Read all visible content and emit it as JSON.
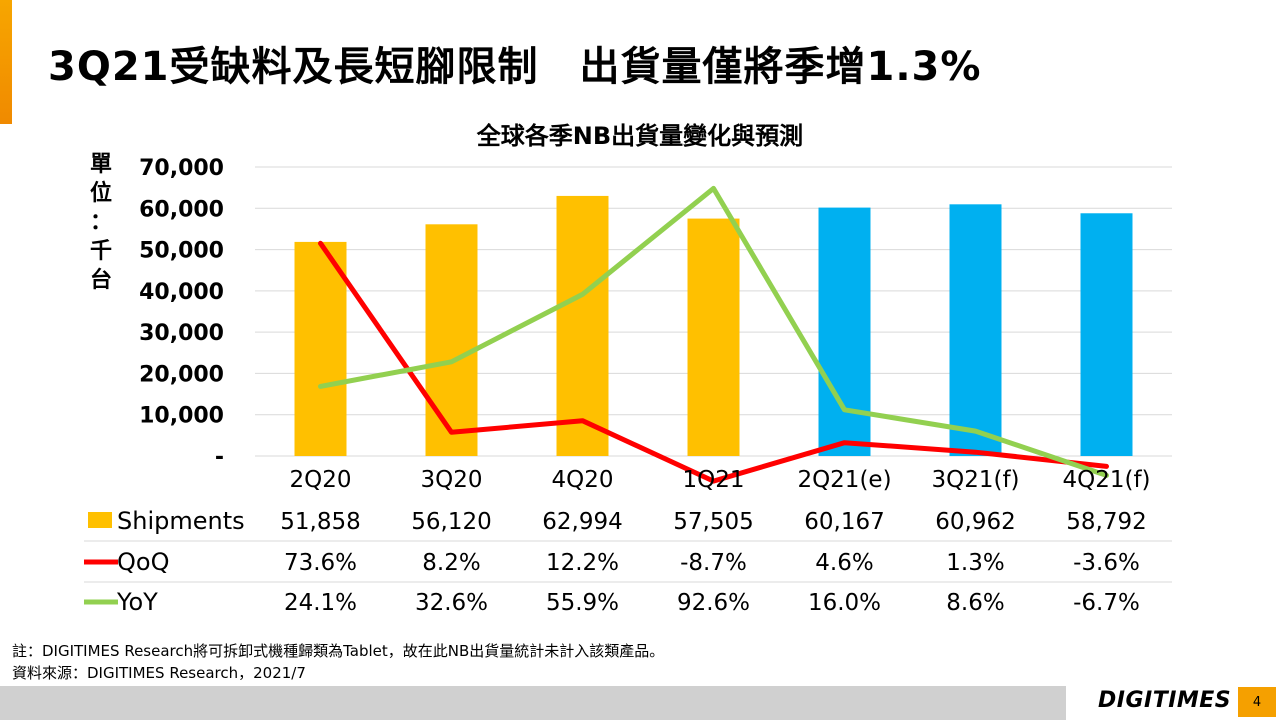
{
  "slide": {
    "title": "3Q21受缺料及長短腳限制　出貨量僅將季增1.3%",
    "footnote_1": "註：DIGITIMES Research將可拆卸式機種歸類為Tablet，故在此NB出貨量統計未計入該類產品。",
    "footnote_2": "資料來源：DIGITIMES Research，2021/7",
    "brand": "DIGITIMES",
    "page_number": "4"
  },
  "chart_data": {
    "type": "bar",
    "title": "全球各季NB出貨量變化與預測",
    "ylabel": "單位：千台",
    "ylabel_chars": [
      "單",
      "位",
      "：",
      "千",
      "台"
    ],
    "ylim": [
      0,
      70000
    ],
    "y_ticks": [
      0,
      10000,
      20000,
      30000,
      40000,
      50000,
      60000,
      70000
    ],
    "y_tick_labels": [
      "-",
      "10,000",
      "20,000",
      "30,000",
      "40,000",
      "50,000",
      "60,000",
      "70,000"
    ],
    "grid": true,
    "categories": [
      "2Q20",
      "3Q20",
      "4Q20",
      "1Q21",
      "2Q21(e)",
      "3Q21(f)",
      "4Q21(f)"
    ],
    "series": [
      {
        "name": "Shipments",
        "type": "bar",
        "color": "#FFC000",
        "forecast_color": "#00B0F0",
        "values": [
          51858,
          56120,
          62994,
          57505,
          60167,
          60962,
          58792
        ],
        "labels": [
          "51,858",
          "56,120",
          "62,994",
          "57,505",
          "60,167",
          "60,962",
          "58,792"
        ]
      },
      {
        "name": "QoQ",
        "type": "line",
        "color": "#FF0000",
        "values": [
          73.6,
          8.2,
          12.2,
          -8.7,
          4.6,
          1.3,
          -3.6
        ],
        "labels": [
          "73.6%",
          "8.2%",
          "12.2%",
          "-8.7%",
          "4.6%",
          "1.3%",
          "-3.6%"
        ]
      },
      {
        "name": "YoY",
        "type": "line",
        "color": "#92D050",
        "values": [
          24.1,
          32.6,
          55.9,
          92.6,
          16.0,
          8.6,
          -6.7
        ],
        "labels": [
          "24.1%",
          "32.6%",
          "55.9%",
          "92.6%",
          "16.0%",
          "8.6%",
          "-6.7%"
        ]
      }
    ],
    "forecast_from_index": 4
  }
}
